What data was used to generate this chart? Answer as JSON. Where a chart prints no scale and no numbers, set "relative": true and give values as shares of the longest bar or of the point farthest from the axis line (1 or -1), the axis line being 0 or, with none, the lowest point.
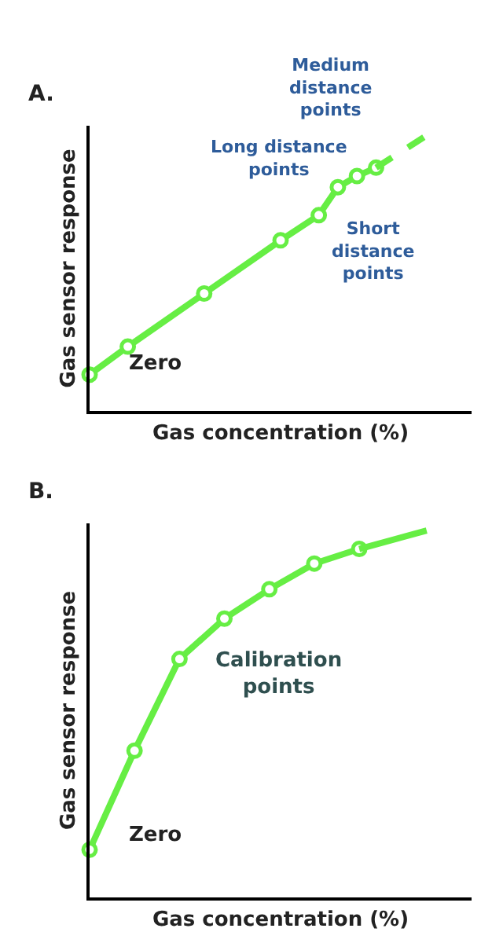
{
  "chart_data": [
    {
      "type": "line",
      "title": "A.",
      "xlabel": "Gas concentration (%)",
      "ylabel": "Gas sensor response",
      "relative": true,
      "tick_labels": false,
      "categories": [
        null,
        null,
        null,
        null,
        null,
        null,
        null,
        null,
        null,
        null,
        null,
        null,
        null,
        null,
        null,
        null,
        null,
        null,
        null,
        null,
        null
      ],
      "series": [
        {
          "color": "#66ee44",
          "values": [
            0.13,
            null,
            0.23,
            null,
            null,
            null,
            0.42,
            null,
            null,
            null,
            0.61,
            null,
            0.7,
            0.8,
            0.84,
            0.87,
            null,
            null,
            null,
            null,
            null
          ],
          "marker": "circle",
          "line_style": "solid"
        },
        {
          "color": "#66ee44",
          "values": [
            null,
            null,
            null,
            null,
            null,
            null,
            null,
            null,
            null,
            null,
            null,
            null,
            null,
            null,
            null,
            0.87,
            null,
            null,
            1.0,
            null,
            null
          ],
          "marker": "none",
          "line_style": "dashed"
        }
      ],
      "annotations": [
        "Zero",
        "Long distance\npoints",
        "Medium\ndistance\npoints",
        "Short\ndistance\npoints"
      ]
    },
    {
      "type": "line",
      "title": "B.",
      "xlabel": "Gas concentration (%)",
      "ylabel": "Gas sensor response",
      "relative": true,
      "tick_labels": false,
      "categories": [
        null,
        null,
        null,
        null,
        null,
        null,
        null,
        null,
        null,
        null,
        null,
        null,
        null,
        null,
        null,
        null,
        null,
        null
      ],
      "series": [
        {
          "color": "#66ee44",
          "values": [
            0.13,
            null,
            0.4,
            null,
            0.65,
            null,
            0.76,
            null,
            0.84,
            null,
            0.91,
            null,
            0.95,
            null,
            null,
            null,
            null,
            null
          ],
          "marker": "circle",
          "line_style": "solid"
        },
        {
          "color": "#66ee44",
          "values": [
            null,
            null,
            null,
            null,
            null,
            null,
            null,
            null,
            null,
            null,
            null,
            null,
            0.95,
            null,
            null,
            1.0,
            null,
            null
          ],
          "marker": "none",
          "line_style": "solid"
        }
      ],
      "annotations": [
        "Zero",
        "Calibration\npoints"
      ]
    }
  ]
}
